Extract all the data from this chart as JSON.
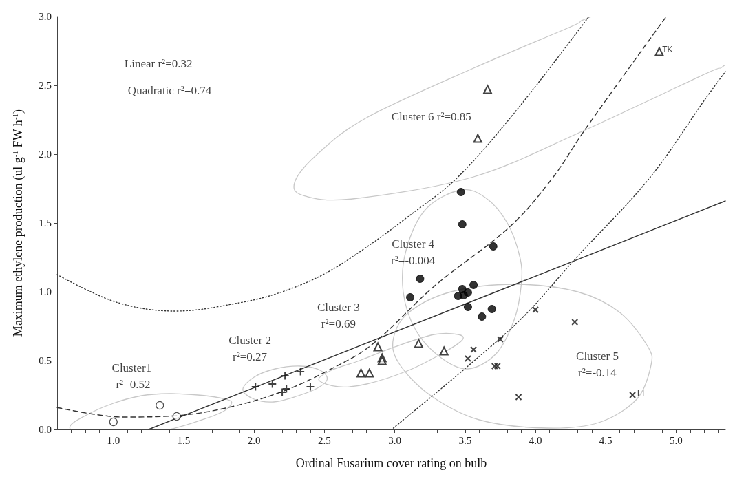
{
  "chart_data": {
    "type": "scatter",
    "xlabel": "Ordinal Fusarium cover rating on bulb",
    "ylabel": "Maximum ethylene production (ul g$^{-1}$ FW h$^{-1}$)",
    "xlim": [
      0.6,
      5.35
    ],
    "ylim": [
      0,
      3
    ],
    "xticks": [
      {
        "value": 0.7,
        "label": null
      },
      {
        "value": 0.8,
        "label": null
      },
      {
        "value": 0.9,
        "label": null
      },
      {
        "value": 1,
        "label": "1.0"
      },
      {
        "value": 1.1,
        "label": null
      },
      {
        "value": 1.2,
        "label": null
      },
      {
        "value": 1.3,
        "label": null
      },
      {
        "value": 1.4,
        "label": null
      },
      {
        "value": 1.5,
        "label": "1.5"
      },
      {
        "value": 1.6,
        "label": null
      },
      {
        "value": 1.7,
        "label": null
      },
      {
        "value": 1.8,
        "label": null
      },
      {
        "value": 1.9,
        "label": null
      },
      {
        "value": 2,
        "label": "2.0"
      },
      {
        "value": 2.1,
        "label": null
      },
      {
        "value": 2.2,
        "label": null
      },
      {
        "value": 2.3,
        "label": null
      },
      {
        "value": 2.4,
        "label": null
      },
      {
        "value": 2.5,
        "label": "2.5"
      },
      {
        "value": 2.6,
        "label": null
      },
      {
        "value": 2.7,
        "label": null
      },
      {
        "value": 2.8,
        "label": null
      },
      {
        "value": 2.9,
        "label": null
      },
      {
        "value": 3,
        "label": "3.0"
      },
      {
        "value": 3.1,
        "label": null
      },
      {
        "value": 3.2,
        "label": null
      },
      {
        "value": 3.3,
        "label": null
      },
      {
        "value": 3.4,
        "label": null
      },
      {
        "value": 3.5,
        "label": "3.5"
      },
      {
        "value": 3.6,
        "label": null
      },
      {
        "value": 3.7,
        "label": null
      },
      {
        "value": 3.8,
        "label": null
      },
      {
        "value": 3.9,
        "label": null
      },
      {
        "value": 4,
        "label": "4.0"
      },
      {
        "value": 4.1,
        "label": null
      },
      {
        "value": 4.2,
        "label": null
      },
      {
        "value": 4.3,
        "label": null
      },
      {
        "value": 4.4,
        "label": null
      },
      {
        "value": 4.5,
        "label": "4.5"
      },
      {
        "value": 4.6,
        "label": null
      },
      {
        "value": 4.7,
        "label": null
      },
      {
        "value": 4.8,
        "label": null
      },
      {
        "value": 4.9,
        "label": null
      },
      {
        "value": 5,
        "label": "5.0"
      },
      {
        "value": 5.1,
        "label": null
      },
      {
        "value": 5.2,
        "label": null
      },
      {
        "value": 5.3,
        "label": null
      }
    ],
    "yticks": [
      {
        "value": 0,
        "label": "0.0"
      },
      {
        "value": 0.5,
        "label": "0.5"
      },
      {
        "value": 1,
        "label": "1.0"
      },
      {
        "value": 1.5,
        "label": "1.5"
      },
      {
        "value": 2,
        "label": "2.0"
      },
      {
        "value": 2.5,
        "label": "2.5"
      },
      {
        "value": 3,
        "label": "3.0"
      }
    ],
    "grid": false,
    "series": [
      {
        "type": "line",
        "line_style": "solid",
        "color": "#333333",
        "x": [
          1.25,
          5.35
        ],
        "values": [
          0,
          1.66
        ]
      },
      {
        "type": "line",
        "line_style": "dashed",
        "color": "#333333",
        "x": [
          0.6,
          1.07,
          1.45,
          1.82,
          2.2,
          2.52,
          2.83,
          3.28,
          3.82,
          4.12,
          4.35,
          4.93
        ],
        "values": [
          0.16,
          0.09,
          0.1,
          0.16,
          0.275,
          0.425,
          0.61,
          1.04,
          1.475,
          1.825,
          2.175,
          3.0
        ]
      },
      {
        "type": "line",
        "line_style": "dotted",
        "color": "#333333",
        "x": [
          0.6,
          1.02,
          1.44,
          1.92,
          2.2,
          2.5,
          2.8,
          3.1,
          3.44,
          3.87,
          4.38
        ],
        "values": [
          1.125,
          0.925,
          0.86,
          0.925,
          1.0,
          1.13,
          1.325,
          1.55,
          1.825,
          2.325,
          3.0
        ]
      },
      {
        "type": "line",
        "line_style": "dotted",
        "color": "#333333",
        "x": [
          2.99,
          3.52,
          3.92,
          4.27,
          4.81,
          5.21,
          5.35
        ],
        "values": [
          0.01,
          0.46,
          0.825,
          1.225,
          1.825,
          2.405,
          2.6
        ]
      },
      {
        "marker": "circle-open",
        "color": "#222222",
        "x": [
          1.0,
          1.33,
          1.45
        ],
        "values": [
          0.055,
          0.175,
          0.095
        ]
      },
      {
        "marker": "plus",
        "color": "#111111",
        "x": [
          2.01,
          2.13,
          2.22,
          2.33,
          2.2,
          2.23,
          2.4
        ],
        "values": [
          0.31,
          0.33,
          0.39,
          0.42,
          0.27,
          0.295,
          0.31
        ]
      },
      {
        "marker": "triangle-open",
        "color": "#111111",
        "x": [
          2.76,
          2.82,
          2.88,
          2.91,
          2.91,
          3.17,
          3.35
        ],
        "values": [
          0.41,
          0.41,
          0.6,
          0.52,
          0.5,
          0.625,
          0.57
        ]
      },
      {
        "marker": "circle",
        "color": "#000000",
        "x": [
          3.47,
          3.48,
          3.7,
          3.18,
          3.11,
          3.56,
          3.48,
          3.52,
          3.45,
          3.49,
          3.52,
          3.62,
          3.69
        ],
        "values": [
          1.725,
          1.49,
          1.33,
          1.095,
          0.96,
          1.05,
          1.02,
          0.995,
          0.97,
          0.975,
          0.89,
          0.82,
          0.875
        ]
      },
      {
        "marker": "cross",
        "color": "#111111",
        "x": [
          4.0,
          4.28,
          3.75,
          3.56,
          3.52,
          3.71,
          3.73,
          3.88,
          4.69
        ],
        "values": [
          0.87,
          0.78,
          0.655,
          0.58,
          0.515,
          0.46,
          0.46,
          0.235,
          0.25
        ]
      },
      {
        "marker": "triangle-open",
        "color": "#111111",
        "x": [
          3.66,
          3.59,
          4.88
        ],
        "values": [
          2.47,
          2.115,
          2.745
        ]
      }
    ],
    "annotations": [
      "Linear r²=0.32",
      "Quadratic r²=0.74",
      "Cluster1\n r²=0.52",
      "Cluster 2\nr²=0.27",
      "Cluster 3\nr²=0.69",
      "Cluster 4\nr²=-0.004",
      "Cluster 5\nr²=-0.14",
      "Cluster 6 r²=0.85",
      {
        "text": "TK",
        "x": 4.88,
        "y": 2.745
      },
      {
        "text": "TT",
        "x": 4.69,
        "y": 0.25
      }
    ]
  }
}
